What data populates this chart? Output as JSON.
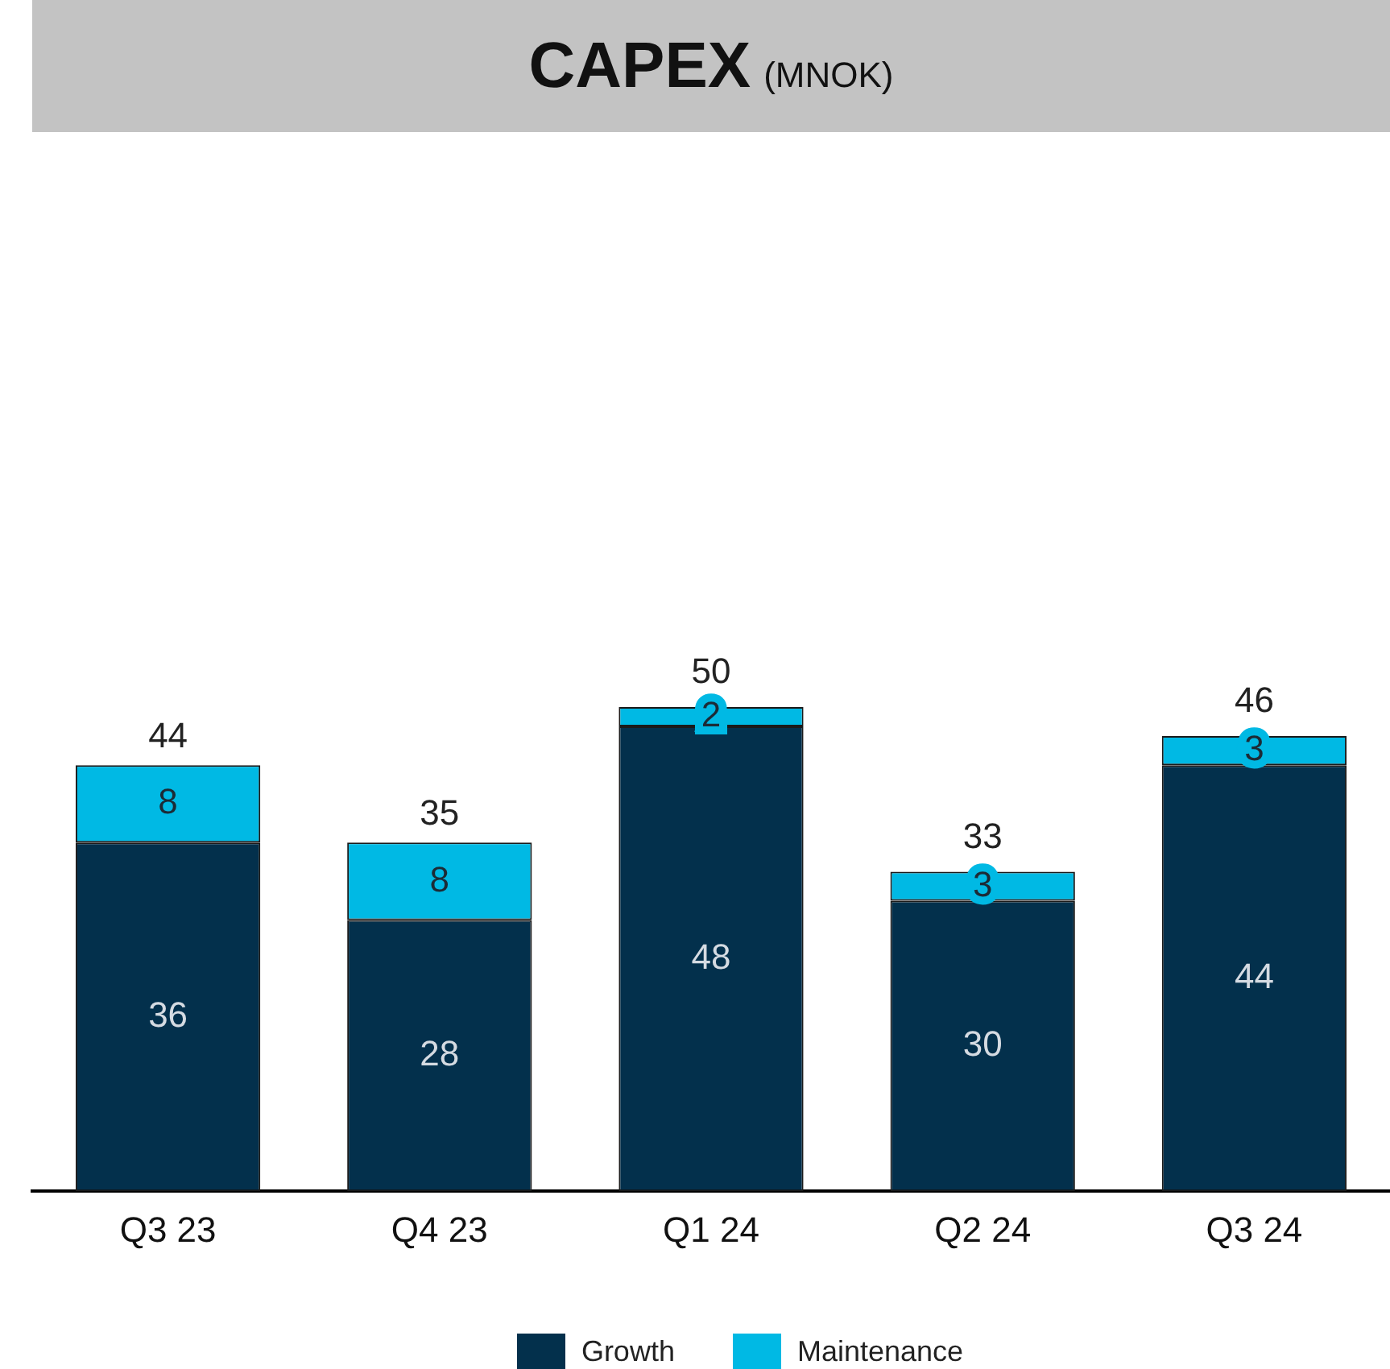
{
  "chart_data": {
    "type": "bar",
    "title": "CAPEX",
    "subtitle": "(MNOK)",
    "categories": [
      "Q3 23",
      "Q4 23",
      "Q1 24",
      "Q2 24",
      "Q3 24"
    ],
    "series": [
      {
        "name": "Growth",
        "color": "#03304c",
        "values": [
          36,
          28,
          48,
          30,
          44
        ]
      },
      {
        "name": "Maintenance",
        "color": "#00b9e4",
        "values": [
          8,
          8,
          2,
          3,
          3
        ]
      }
    ],
    "stacked": true,
    "data_labels": true,
    "totals": [
      "44",
      "35",
      "50",
      "33",
      "46"
    ],
    "legend": "bottom",
    "grid": false
  }
}
